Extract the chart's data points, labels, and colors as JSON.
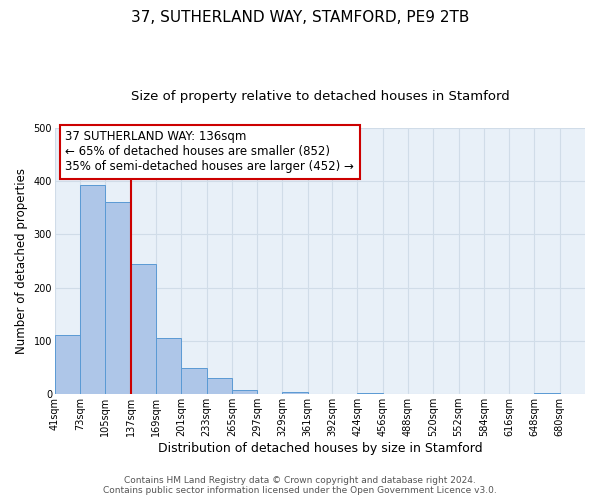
{
  "title": "37, SUTHERLAND WAY, STAMFORD, PE9 2TB",
  "subtitle": "Size of property relative to detached houses in Stamford",
  "xlabel": "Distribution of detached houses by size in Stamford",
  "ylabel": "Number of detached properties",
  "bar_left_edges": [
    41,
    73,
    105,
    137,
    169,
    201,
    233,
    265,
    297,
    329,
    361,
    392,
    424,
    456,
    488,
    520,
    552,
    584,
    616,
    648
  ],
  "bar_widths": [
    32,
    32,
    32,
    32,
    32,
    32,
    32,
    32,
    32,
    32,
    31,
    32,
    32,
    32,
    32,
    32,
    32,
    32,
    32,
    32
  ],
  "bar_heights": [
    111,
    393,
    360,
    244,
    105,
    50,
    30,
    8,
    0,
    5,
    0,
    0,
    2,
    0,
    0,
    0,
    0,
    0,
    0,
    2
  ],
  "bar_color": "#aec6e8",
  "bar_edge_color": "#5a9ad4",
  "x_tick_labels": [
    "41sqm",
    "73sqm",
    "105sqm",
    "137sqm",
    "169sqm",
    "201sqm",
    "233sqm",
    "265sqm",
    "297sqm",
    "329sqm",
    "361sqm",
    "392sqm",
    "424sqm",
    "456sqm",
    "488sqm",
    "520sqm",
    "552sqm",
    "584sqm",
    "616sqm",
    "648sqm",
    "680sqm"
  ],
  "x_tick_positions": [
    41,
    73,
    105,
    137,
    169,
    201,
    233,
    265,
    297,
    329,
    361,
    392,
    424,
    456,
    488,
    520,
    552,
    584,
    616,
    648,
    680
  ],
  "ylim": [
    0,
    500
  ],
  "xlim": [
    41,
    712
  ],
  "vline_x": 137,
  "vline_color": "#cc0000",
  "annotation_line1": "37 SUTHERLAND WAY: 136sqm",
  "annotation_line2": "← 65% of detached houses are smaller (852)",
  "annotation_line3": "35% of semi-detached houses are larger (452) →",
  "annotation_box_edge_color": "#cc0000",
  "grid_color": "#d0dce8",
  "bg_color": "#e8f0f8",
  "footer_line1": "Contains HM Land Registry data © Crown copyright and database right 2024.",
  "footer_line2": "Contains public sector information licensed under the Open Government Licence v3.0.",
  "title_fontsize": 11,
  "subtitle_fontsize": 9.5,
  "ylabel_fontsize": 8.5,
  "xlabel_fontsize": 9,
  "tick_fontsize": 7,
  "annotation_fontsize": 8.5,
  "footer_fontsize": 6.5
}
